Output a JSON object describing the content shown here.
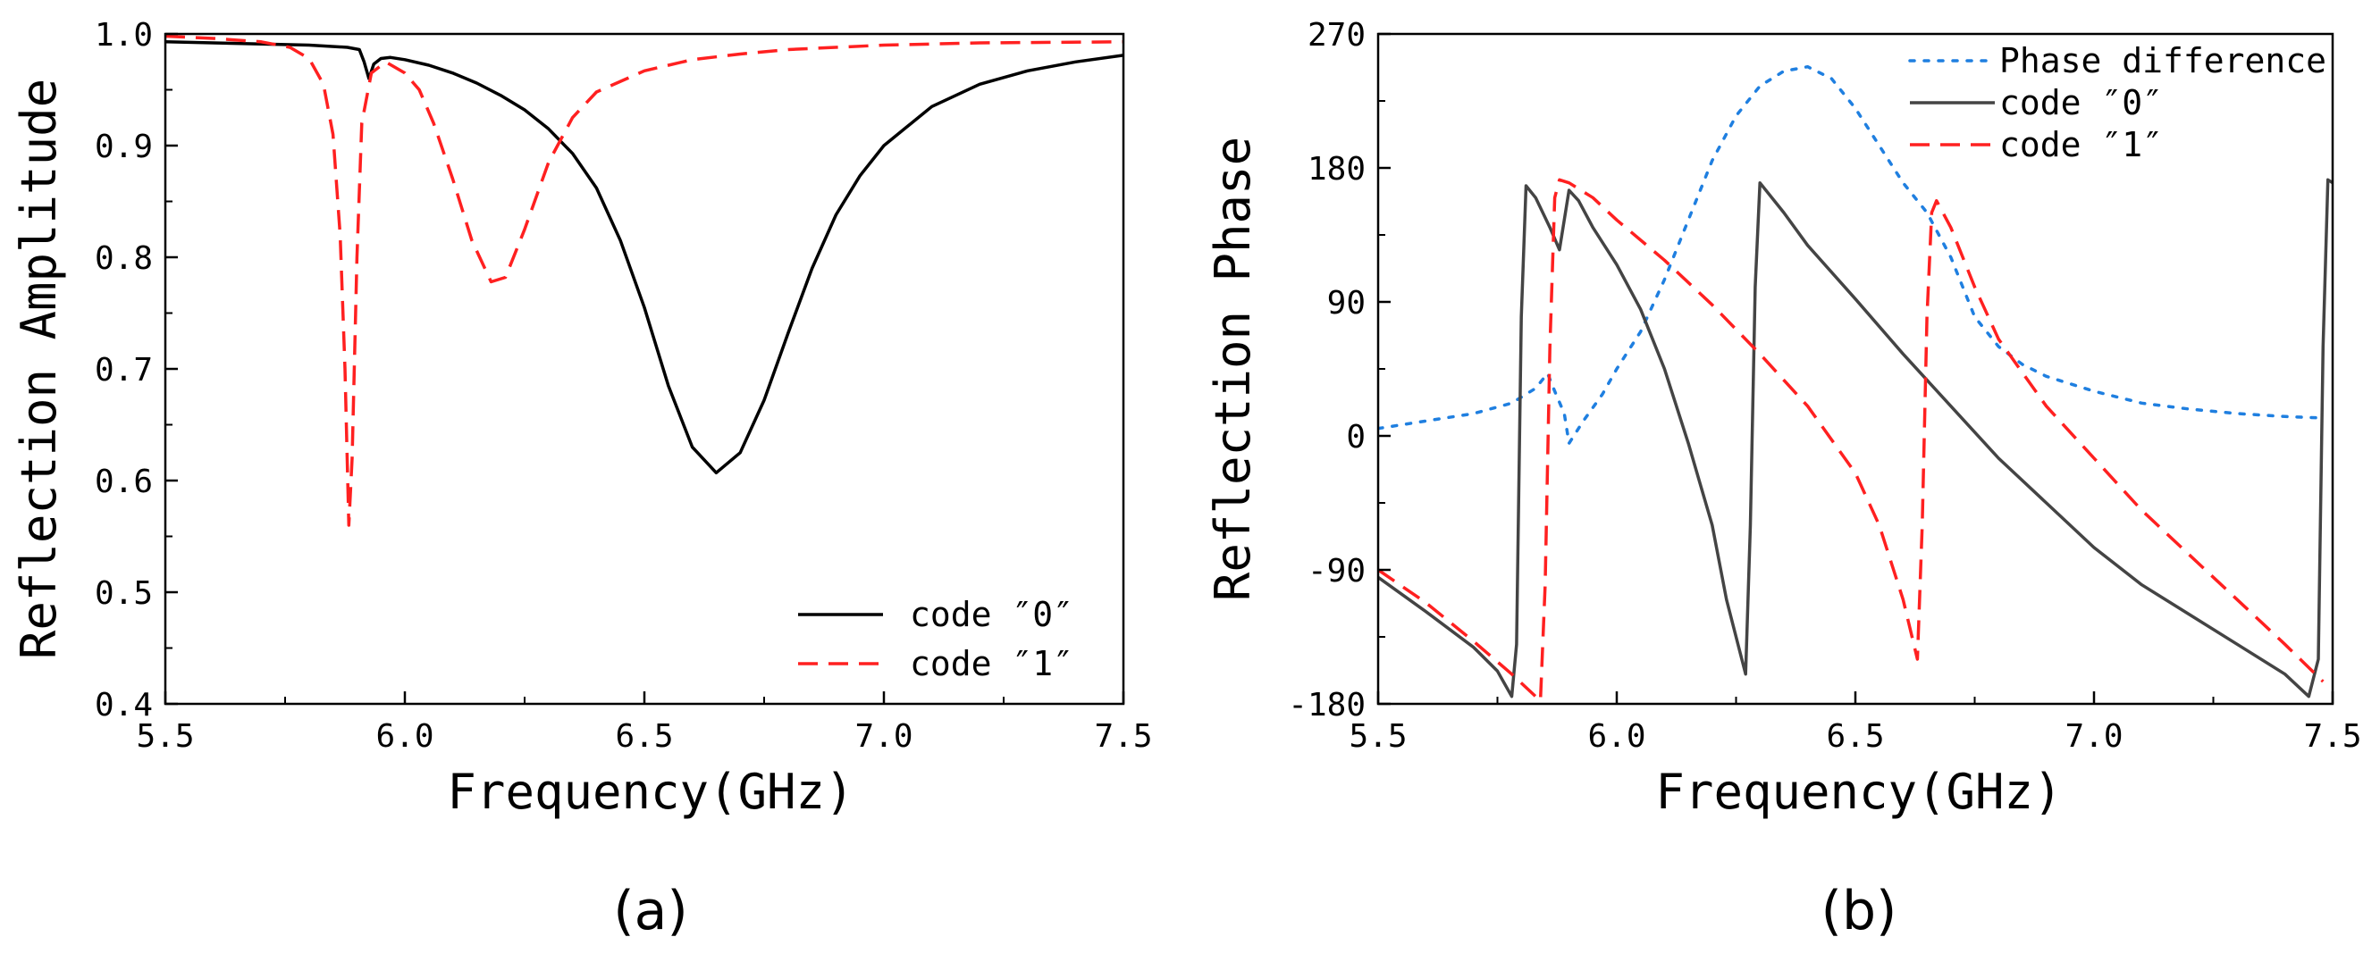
{
  "chart_data": [
    {
      "type": "line",
      "panel": "(a)",
      "xlabel": "Frequency(GHz)",
      "ylabel": "Reflection Amplitude",
      "xlim": [
        5.5,
        7.5
      ],
      "ylim": [
        0.4,
        1.0
      ],
      "x_ticks": [
        5.5,
        6.0,
        6.5,
        7.0,
        7.5
      ],
      "x_tick_labels": [
        "5.5",
        "6.0",
        "6.5",
        "7.0",
        "7.5"
      ],
      "y_ticks": [
        0.4,
        0.5,
        0.6,
        0.7,
        0.8,
        0.9,
        1.0
      ],
      "y_tick_labels": [
        "0.4",
        "0.5",
        "0.6",
        "0.7",
        "0.8",
        "0.9",
        "1.0"
      ],
      "legend_position": "bottom-right",
      "grid": false,
      "series": [
        {
          "name": "code ″0″",
          "color": "#000000",
          "style": "solid",
          "points": [
            [
              5.5,
              0.993
            ],
            [
              5.6,
              0.992
            ],
            [
              5.7,
              0.991
            ],
            [
              5.8,
              0.99
            ],
            [
              5.88,
              0.988
            ],
            [
              5.905,
              0.986
            ],
            [
              5.915,
              0.975
            ],
            [
              5.925,
              0.96
            ],
            [
              5.935,
              0.973
            ],
            [
              5.95,
              0.978
            ],
            [
              5.97,
              0.979
            ],
            [
              6.0,
              0.977
            ],
            [
              6.05,
              0.972
            ],
            [
              6.1,
              0.965
            ],
            [
              6.15,
              0.956
            ],
            [
              6.2,
              0.945
            ],
            [
              6.25,
              0.932
            ],
            [
              6.3,
              0.915
            ],
            [
              6.35,
              0.893
            ],
            [
              6.4,
              0.862
            ],
            [
              6.45,
              0.815
            ],
            [
              6.5,
              0.755
            ],
            [
              6.55,
              0.685
            ],
            [
              6.6,
              0.63
            ],
            [
              6.65,
              0.607
            ],
            [
              6.7,
              0.625
            ],
            [
              6.75,
              0.672
            ],
            [
              6.8,
              0.732
            ],
            [
              6.85,
              0.79
            ],
            [
              6.9,
              0.838
            ],
            [
              6.95,
              0.873
            ],
            [
              7.0,
              0.9
            ],
            [
              7.1,
              0.935
            ],
            [
              7.2,
              0.955
            ],
            [
              7.3,
              0.967
            ],
            [
              7.4,
              0.975
            ],
            [
              7.5,
              0.981
            ]
          ]
        },
        {
          "name": "code ″1″",
          "color": "#ff2020",
          "style": "dashed",
          "points": [
            [
              5.5,
              0.998
            ],
            [
              5.6,
              0.996
            ],
            [
              5.7,
              0.993
            ],
            [
              5.76,
              0.988
            ],
            [
              5.8,
              0.978
            ],
            [
              5.83,
              0.955
            ],
            [
              5.85,
              0.91
            ],
            [
              5.865,
              0.82
            ],
            [
              5.875,
              0.7
            ],
            [
              5.883,
              0.56
            ],
            [
              5.89,
              0.62
            ],
            [
              5.9,
              0.8
            ],
            [
              5.91,
              0.92
            ],
            [
              5.93,
              0.965
            ],
            [
              5.96,
              0.975
            ],
            [
              6.0,
              0.965
            ],
            [
              6.03,
              0.95
            ],
            [
              6.06,
              0.92
            ],
            [
              6.1,
              0.87
            ],
            [
              6.14,
              0.815
            ],
            [
              6.18,
              0.778
            ],
            [
              6.21,
              0.782
            ],
            [
              6.25,
              0.825
            ],
            [
              6.3,
              0.885
            ],
            [
              6.35,
              0.925
            ],
            [
              6.4,
              0.948
            ],
            [
              6.5,
              0.967
            ],
            [
              6.6,
              0.977
            ],
            [
              6.7,
              0.982
            ],
            [
              6.8,
              0.986
            ],
            [
              7.0,
              0.99
            ],
            [
              7.2,
              0.992
            ],
            [
              7.5,
              0.993
            ]
          ]
        }
      ]
    },
    {
      "type": "line",
      "panel": "(b)",
      "xlabel": "Frequency(GHz)",
      "ylabel": "Reflection Phase",
      "xlim": [
        5.5,
        7.5
      ],
      "ylim": [
        -180,
        270
      ],
      "x_ticks": [
        5.5,
        6.0,
        6.5,
        7.0,
        7.5
      ],
      "x_tick_labels": [
        "5.5",
        "6.0",
        "6.5",
        "7.0",
        "7.5"
      ],
      "y_ticks": [
        -180,
        -90,
        0,
        90,
        180,
        270
      ],
      "y_tick_labels": [
        "-180",
        "-90",
        "0",
        "90",
        "180",
        "270"
      ],
      "legend_position": "top-right",
      "grid": false,
      "series": [
        {
          "name": "Phase difference",
          "color": "#1f7fe0",
          "style": "dotted",
          "points": [
            [
              5.5,
              5
            ],
            [
              5.6,
              10
            ],
            [
              5.7,
              15
            ],
            [
              5.78,
              22
            ],
            [
              5.83,
              32
            ],
            [
              5.855,
              42
            ],
            [
              5.87,
              30
            ],
            [
              5.89,
              15
            ],
            [
              5.9,
              -5
            ],
            [
              5.93,
              10
            ],
            [
              5.97,
              28
            ],
            [
              6.0,
              45
            ],
            [
              6.05,
              70
            ],
            [
              6.1,
              105
            ],
            [
              6.15,
              145
            ],
            [
              6.2,
              185
            ],
            [
              6.25,
              215
            ],
            [
              6.3,
              235
            ],
            [
              6.35,
              245
            ],
            [
              6.4,
              248
            ],
            [
              6.45,
              240
            ],
            [
              6.5,
              220
            ],
            [
              6.55,
              195
            ],
            [
              6.6,
              170
            ],
            [
              6.65,
              150
            ],
            [
              6.7,
              120
            ],
            [
              6.75,
              80
            ],
            [
              6.8,
              60
            ],
            [
              6.85,
              48
            ],
            [
              6.9,
              40
            ],
            [
              7.0,
              30
            ],
            [
              7.1,
              22
            ],
            [
              7.2,
              18
            ],
            [
              7.3,
              15
            ],
            [
              7.4,
              13
            ],
            [
              7.48,
              12
            ]
          ]
        },
        {
          "name": "code ″0″",
          "color": "#444444",
          "style": "solid",
          "points": [
            [
              5.5,
              -95
            ],
            [
              5.6,
              -118
            ],
            [
              5.7,
              -142
            ],
            [
              5.75,
              -158
            ],
            [
              5.78,
              -175
            ],
            [
              5.79,
              -140
            ],
            [
              5.8,
              80
            ],
            [
              5.81,
              168
            ],
            [
              5.83,
              160
            ],
            [
              5.86,
              140
            ],
            [
              5.88,
              125
            ],
            [
              5.9,
              165
            ],
            [
              5.92,
              158
            ],
            [
              5.95,
              140
            ],
            [
              6.0,
              115
            ],
            [
              6.05,
              85
            ],
            [
              6.1,
              45
            ],
            [
              6.15,
              -5
            ],
            [
              6.2,
              -60
            ],
            [
              6.23,
              -110
            ],
            [
              6.27,
              -160
            ],
            [
              6.28,
              -60
            ],
            [
              6.29,
              100
            ],
            [
              6.3,
              170
            ],
            [
              6.35,
              150
            ],
            [
              6.4,
              128
            ],
            [
              6.5,
              92
            ],
            [
              6.6,
              55
            ],
            [
              6.7,
              20
            ],
            [
              6.8,
              -15
            ],
            [
              6.9,
              -45
            ],
            [
              7.0,
              -75
            ],
            [
              7.1,
              -100
            ],
            [
              7.2,
              -120
            ],
            [
              7.3,
              -140
            ],
            [
              7.4,
              -160
            ],
            [
              7.45,
              -175
            ],
            [
              7.47,
              -150
            ],
            [
              7.48,
              60
            ],
            [
              7.49,
              172
            ],
            [
              7.5,
              170
            ]
          ]
        },
        {
          "name": "code ″1″",
          "color": "#ff2020",
          "style": "dashed",
          "points": [
            [
              5.5,
              -90
            ],
            [
              5.6,
              -112
            ],
            [
              5.7,
              -138
            ],
            [
              5.78,
              -160
            ],
            [
              5.84,
              -178
            ],
            [
              5.85,
              -100
            ],
            [
              5.86,
              60
            ],
            [
              5.87,
              160
            ],
            [
              5.88,
              172
            ],
            [
              5.9,
              170
            ],
            [
              5.95,
              160
            ],
            [
              6.0,
              145
            ],
            [
              6.1,
              118
            ],
            [
              6.2,
              88
            ],
            [
              6.3,
              55
            ],
            [
              6.4,
              20
            ],
            [
              6.5,
              -25
            ],
            [
              6.55,
              -60
            ],
            [
              6.6,
              -110
            ],
            [
              6.63,
              -150
            ],
            [
              6.64,
              -60
            ],
            [
              6.65,
              80
            ],
            [
              6.66,
              150
            ],
            [
              6.67,
              158
            ],
            [
              6.7,
              140
            ],
            [
              6.75,
              100
            ],
            [
              6.8,
              65
            ],
            [
              6.9,
              20
            ],
            [
              7.0,
              -15
            ],
            [
              7.1,
              -50
            ],
            [
              7.2,
              -80
            ],
            [
              7.3,
              -110
            ],
            [
              7.4,
              -140
            ],
            [
              7.48,
              -165
            ]
          ]
        }
      ]
    }
  ],
  "captions": {
    "a": "(a)",
    "b": "(b)"
  }
}
